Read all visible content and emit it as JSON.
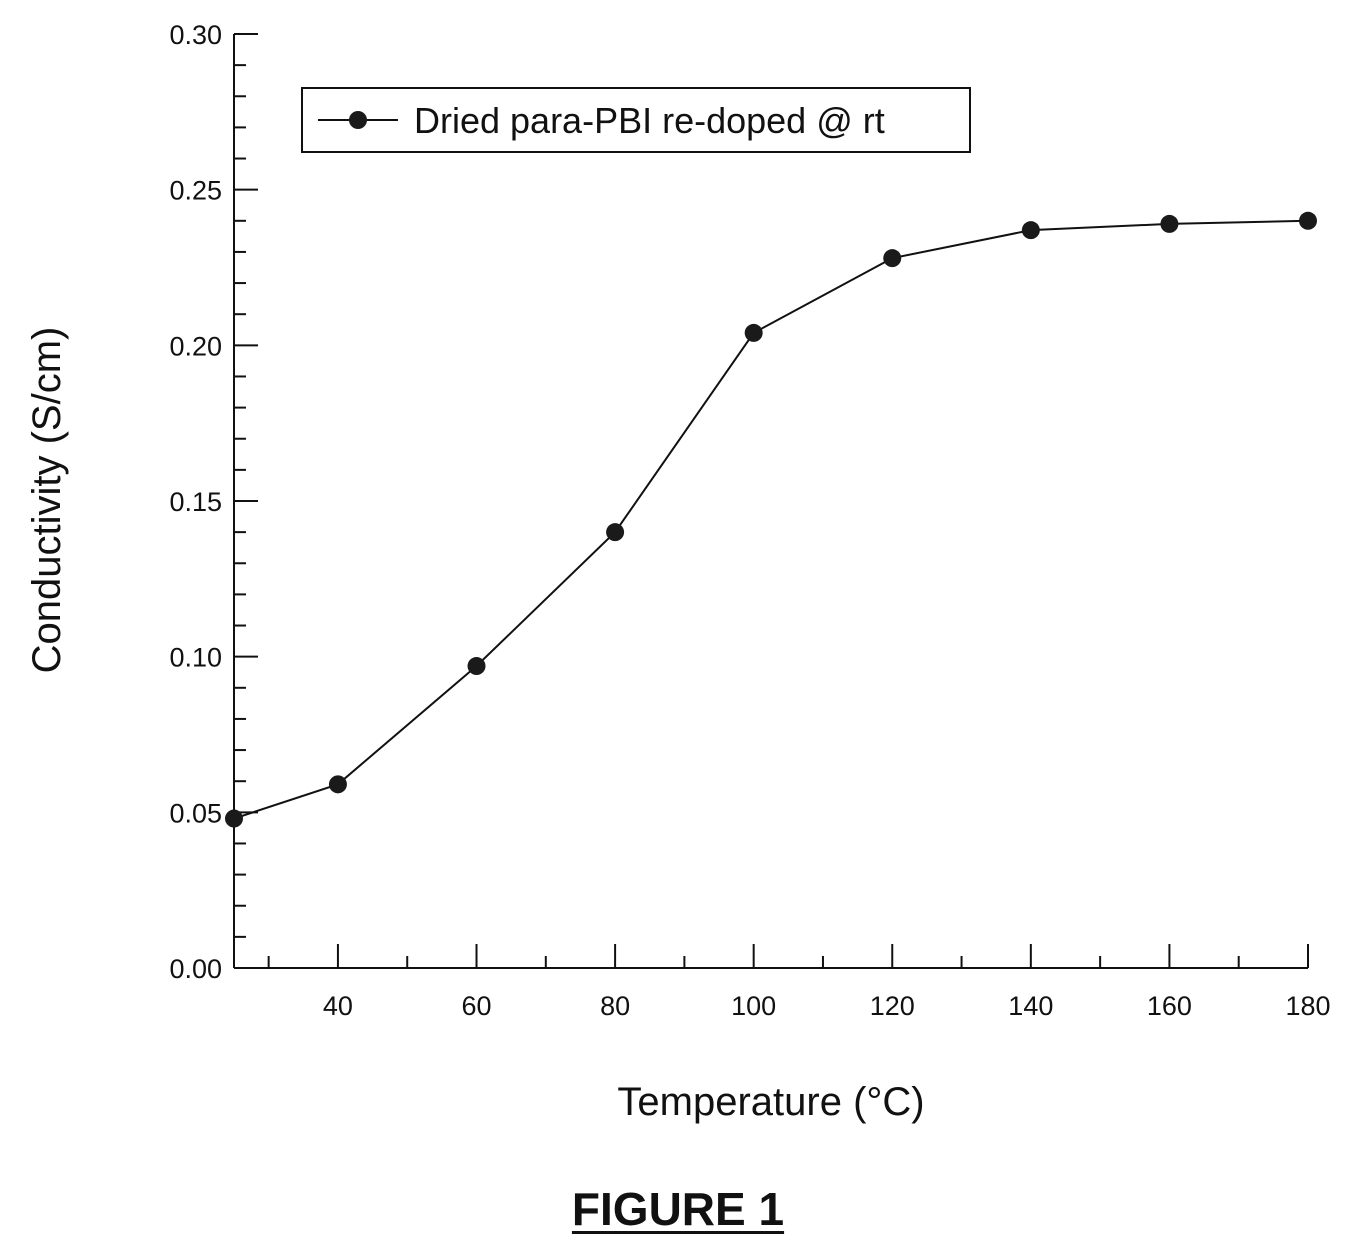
{
  "chart_data": {
    "type": "line",
    "title": "",
    "xlabel": "Temperature (°C)",
    "ylabel": "Conductivity (S/cm)",
    "xlim": [
      25,
      180
    ],
    "ylim": [
      0.0,
      0.3
    ],
    "x_ticks": [
      40,
      60,
      80,
      100,
      120,
      140,
      160,
      180
    ],
    "x_tick_labels": [
      "40",
      "60",
      "80",
      "100",
      "120",
      "140",
      "160",
      "180"
    ],
    "y_ticks": [
      0.0,
      0.05,
      0.1,
      0.15,
      0.2,
      0.25,
      0.3
    ],
    "y_tick_labels": [
      "0.00",
      "0.05",
      "0.10",
      "0.15",
      "0.20",
      "0.25",
      "0.30"
    ],
    "legend_position": "top-left",
    "grid": false,
    "series": [
      {
        "name": "Dried para-PBI re-doped @ rt",
        "color": "#111111",
        "x": [
          25,
          40,
          60,
          80,
          100,
          120,
          140,
          160,
          180
        ],
        "y": [
          0.048,
          0.059,
          0.097,
          0.14,
          0.204,
          0.228,
          0.237,
          0.239,
          0.24
        ]
      }
    ]
  },
  "caption": "FIGURE 1"
}
